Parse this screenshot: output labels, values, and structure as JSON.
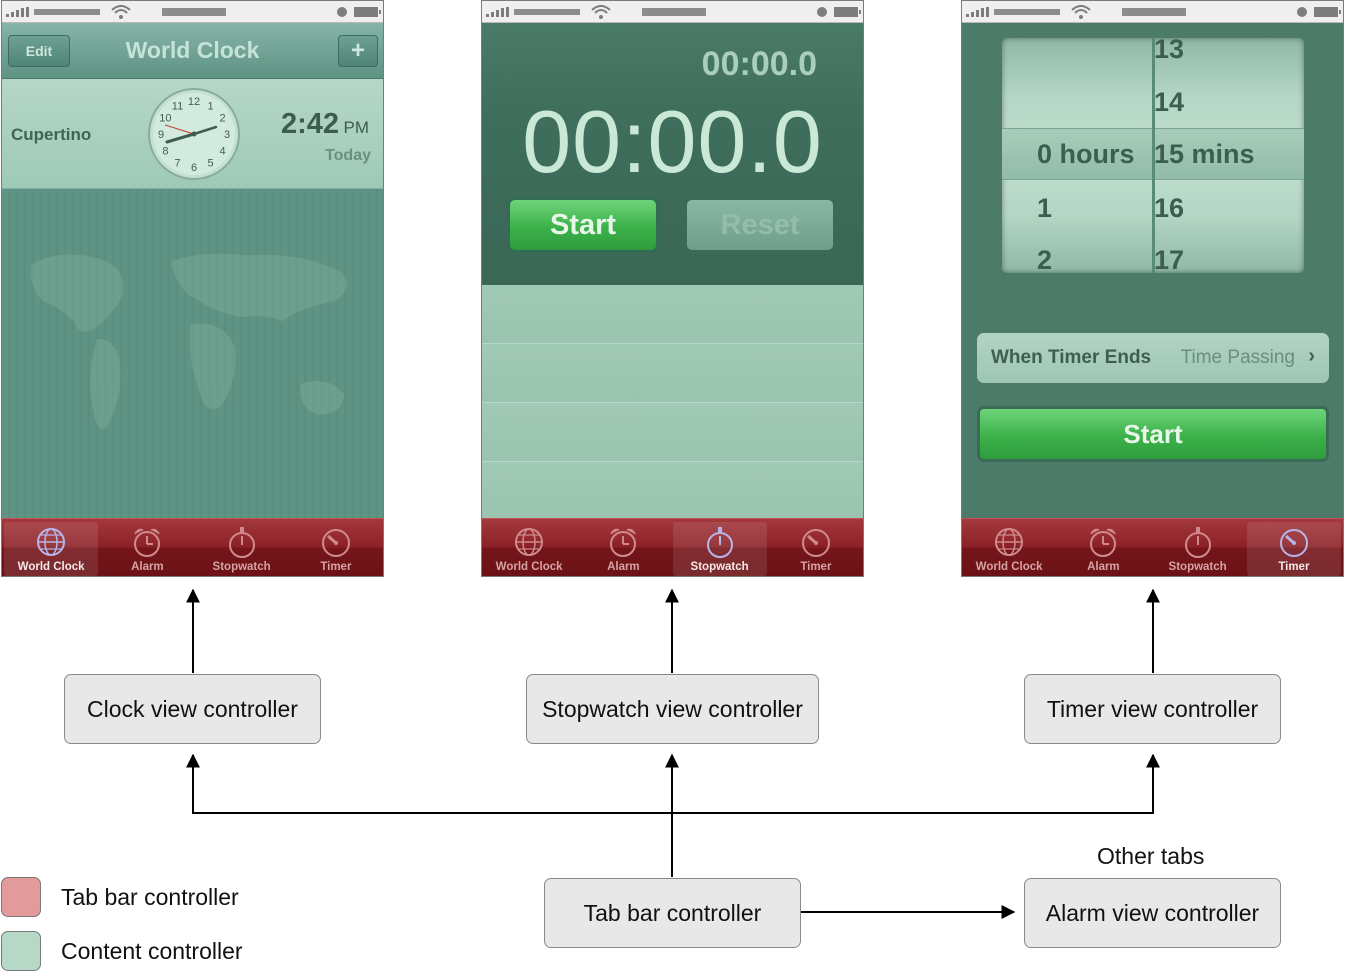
{
  "colors": {
    "tab_bar_controller": "#e39a9b",
    "content_controller": "#b6d8c7",
    "tab_bar": "#8c2227",
    "start_green": "#3cb14a"
  },
  "tab_labels": [
    "World Clock",
    "Alarm",
    "Stopwatch",
    "Timer"
  ],
  "tab_icons": [
    "globe-icon",
    "alarm-clock-icon",
    "stopwatch-icon",
    "timer-icon"
  ],
  "clock_screen": {
    "edit": "Edit",
    "title": "World Clock",
    "add": "+",
    "city": "Cupertino",
    "time": "2:42",
    "ampm": "PM",
    "day": "Today",
    "clock_numbers": [
      "12",
      "1",
      "2",
      "3",
      "4",
      "5",
      "6",
      "7",
      "8",
      "9",
      "10",
      "11"
    ],
    "active_tab": 0
  },
  "stopwatch_screen": {
    "lap_time": "00:00.0",
    "total_time": "00:00.0",
    "start": "Start",
    "reset": "Reset",
    "active_tab": 2
  },
  "timer_screen": {
    "hours_col": [
      "",
      "",
      "0 hours",
      "1",
      "2"
    ],
    "mins_col": [
      "13",
      "14",
      "15 mins",
      "16",
      "17"
    ],
    "when_label": "When Timer Ends",
    "when_value": "Time Passing",
    "start": "Start",
    "active_tab": 3
  },
  "controllers": {
    "clock": "Clock view controller",
    "stopwatch": "Stopwatch view controller",
    "timer": "Timer view controller",
    "tab_bar": "Tab bar controller",
    "alarm": "Alarm view controller"
  },
  "other_tabs": "Other tabs",
  "legend": {
    "tab_bar": "Tab bar controller",
    "content": "Content controller"
  }
}
